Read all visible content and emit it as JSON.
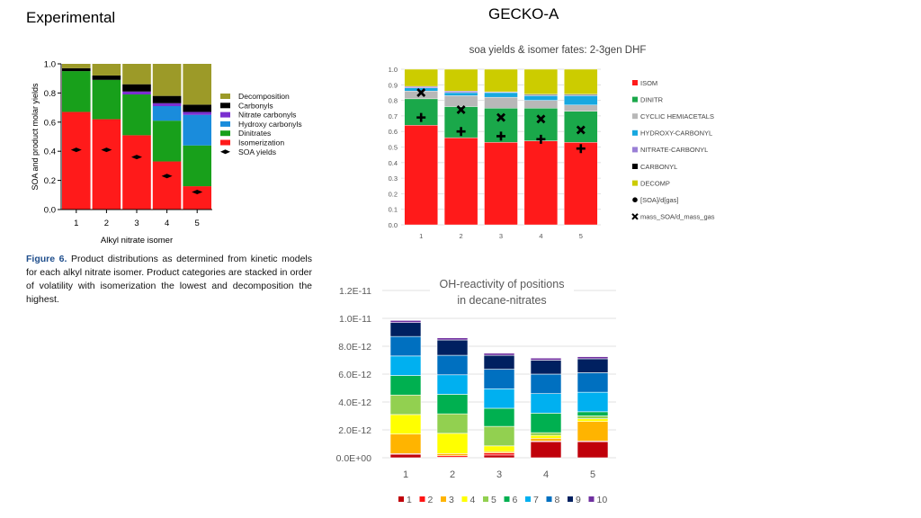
{
  "slide": {
    "left_title": "Experimental",
    "right_title": "GECKO-A"
  },
  "chart_data": [
    {
      "id": "experimental",
      "type": "bar",
      "stacked": true,
      "title": "",
      "xlabel": "Alkyl nitrate isomer",
      "ylabel": "SOA and product molar yields",
      "ylim": [
        0,
        1.0
      ],
      "yticks": [
        "0.0",
        "0.2",
        "0.4",
        "0.6",
        "0.8",
        "1.0"
      ],
      "categories": [
        "1",
        "2",
        "3",
        "4",
        "5"
      ],
      "series": [
        {
          "name": "Isomerization",
          "color": "#ff1a1a",
          "values": [
            0.67,
            0.62,
            0.51,
            0.33,
            0.16
          ]
        },
        {
          "name": "Dinitrates",
          "color": "#18a01b",
          "values": [
            0.28,
            0.27,
            0.28,
            0.28,
            0.28
          ]
        },
        {
          "name": "Hydroxy carbonyls",
          "color": "#1a8cdc",
          "values": [
            0.0,
            0.0,
            0.0,
            0.1,
            0.21
          ]
        },
        {
          "name": "Nitrate carbonyls",
          "color": "#7b2fd0",
          "values": [
            0.0,
            0.0,
            0.02,
            0.02,
            0.02
          ]
        },
        {
          "name": "Carbonyls",
          "color": "#000000",
          "values": [
            0.02,
            0.03,
            0.05,
            0.05,
            0.05
          ]
        },
        {
          "name": "Decomposition",
          "color": "#9c9a28",
          "values": [
            0.03,
            0.08,
            0.14,
            0.22,
            0.28
          ]
        }
      ],
      "markers": [
        {
          "name": "SOA yields",
          "values": [
            0.41,
            0.41,
            0.36,
            0.23,
            0.12
          ]
        }
      ],
      "legend_order": [
        "Decomposition",
        "Carbonyls",
        "Nitrate carbonyls",
        "Hydroxy carbonyls",
        "Dinitrates",
        "Isomerization",
        "SOA yields"
      ],
      "caption": {
        "label": "Figure 6.",
        "text": " Product distributions as determined from kinetic models for each alkyl nitrate isomer. Product categories are stacked in order of volatility with isomerization the lowest and decomposition the highest."
      }
    },
    {
      "id": "gecko",
      "type": "bar",
      "stacked": true,
      "title": "soa yields & isomer fates: 2-3gen DHF",
      "ylim": [
        0,
        1.0
      ],
      "yticks": [
        "0.0",
        "0.1",
        "0.2",
        "0.3",
        "0.4",
        "0.5",
        "0.6",
        "0.7",
        "0.8",
        "0.9",
        "1.0"
      ],
      "categories": [
        "1",
        "2",
        "3",
        "4",
        "5"
      ],
      "series": [
        {
          "name": "ISOM",
          "color": "#ff1a1a",
          "values": [
            0.64,
            0.56,
            0.53,
            0.54,
            0.53
          ]
        },
        {
          "name": "DINITR",
          "color": "#1aa84a",
          "values": [
            0.17,
            0.2,
            0.22,
            0.21,
            0.2
          ]
        },
        {
          "name": "CYCLIC HEMIACETALS",
          "color": "#b8b8b8",
          "values": [
            0.05,
            0.07,
            0.07,
            0.05,
            0.04
          ]
        },
        {
          "name": "HYDROXY-CARBONYL",
          "color": "#17a8e0",
          "values": [
            0.02,
            0.02,
            0.03,
            0.03,
            0.06
          ]
        },
        {
          "name": "NITRATE-CARBONYL",
          "color": "#9a7fd6",
          "values": [
            0.01,
            0.01,
            0.005,
            0.005,
            0.005
          ]
        },
        {
          "name": "CARBONYL",
          "color": "#000000",
          "values": [
            0.0,
            0.0,
            0.0,
            0.005,
            0.005
          ]
        },
        {
          "name": "DECOMP",
          "color": "#cccc00",
          "values": [
            0.11,
            0.14,
            0.145,
            0.16,
            0.16
          ]
        }
      ],
      "markers": [
        {
          "name": "[SOA]/d[gas]",
          "symbol": "plus",
          "values": [
            0.69,
            0.6,
            0.57,
            0.55,
            0.49
          ]
        },
        {
          "name": "mass_SOA/d_mass_gas",
          "symbol": "cross",
          "values": [
            0.85,
            0.74,
            0.69,
            0.68,
            0.61
          ]
        }
      ],
      "legend_order": [
        "ISOM",
        "DINITR",
        "CYCLIC HEMIACETALS",
        "HYDROXY-CARBONYL",
        "NITRATE-CARBONYL",
        "CARBONYL",
        "DECOMP",
        "[SOA]/d[gas]",
        "mass_SOA/d_mass_gas"
      ]
    },
    {
      "id": "oh-reactivity",
      "type": "bar",
      "stacked": true,
      "title_lines": [
        "OH-reactivity of positions",
        "in decane-nitrates"
      ],
      "ylim": [
        0,
        1.2e-11
      ],
      "yticks": [
        "0.0E+00",
        "2.0E-12",
        "4.0E-12",
        "6.0E-12",
        "8.0E-12",
        "1.0E-11",
        "1.2E-11"
      ],
      "categories": [
        "1",
        "2",
        "3",
        "4",
        "5"
      ],
      "series": [
        {
          "name": "1",
          "color": "#c0000a",
          "values": [
            2.5e-13,
            5e-14,
            2e-13,
            1.15e-12,
            1.15e-12
          ]
        },
        {
          "name": "2",
          "color": "#ff1414",
          "values": [
            5e-14,
            1e-13,
            1.5e-13,
            5e-14,
            5e-14
          ]
        },
        {
          "name": "3",
          "color": "#ffb400",
          "values": [
            1.4e-12,
            1.5e-13,
            1e-13,
            2e-13,
            1.4e-12
          ]
        },
        {
          "name": "4",
          "color": "#ffff00",
          "values": [
            1.4e-12,
            1.45e-12,
            4e-13,
            2e-13,
            2e-13
          ]
        },
        {
          "name": "5",
          "color": "#92d050",
          "values": [
            1.4e-12,
            1.4e-12,
            1.4e-12,
            2e-13,
            2e-13
          ]
        },
        {
          "name": "6",
          "color": "#00b050",
          "values": [
            1.4e-12,
            1.4e-12,
            1.3e-12,
            1.4e-12,
            3e-13
          ]
        },
        {
          "name": "7",
          "color": "#00b0f0",
          "values": [
            1.4e-12,
            1.4e-12,
            1.4e-12,
            1.4e-12,
            1.4e-12
          ]
        },
        {
          "name": "8",
          "color": "#0070c0",
          "values": [
            1.4e-12,
            1.4e-12,
            1.4e-12,
            1.4e-12,
            1.4e-12
          ]
        },
        {
          "name": "9",
          "color": "#002060",
          "values": [
            1e-12,
            1.1e-12,
            1e-12,
            1e-12,
            1e-12
          ]
        },
        {
          "name": "10",
          "color": "#7030a0",
          "values": [
            1.5e-13,
            1.5e-13,
            1.5e-13,
            1.5e-13,
            1.5e-13
          ]
        }
      ]
    }
  ]
}
